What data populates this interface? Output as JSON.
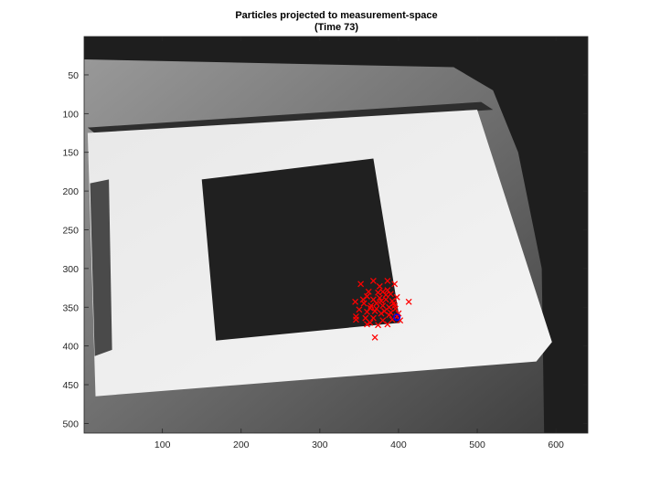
{
  "chart_data": {
    "type": "scatter",
    "title": "Particles projected to measurement-space",
    "subtitle": "(Time 73)",
    "xlabel": "",
    "ylabel": "",
    "xlim": [
      0.5,
      640.5
    ],
    "ylim": [
      0.5,
      512.5
    ],
    "y_reversed": true,
    "grid": false,
    "xticks": [
      100,
      200,
      300,
      400,
      500,
      600
    ],
    "yticks": [
      50,
      100,
      150,
      200,
      250,
      300,
      350,
      400,
      450,
      500
    ],
    "background": "grayscale camera image",
    "image_regions": {
      "board": [
        [
          5,
          125
        ],
        [
          500,
          95
        ],
        [
          595,
          395
        ],
        [
          575,
          420
        ],
        [
          15,
          465
        ]
      ],
      "board_edge": [
        [
          5,
          118
        ],
        [
          505,
          85
        ],
        [
          520,
          95
        ],
        [
          20,
          130
        ]
      ],
      "dark_square": [
        [
          150,
          185
        ],
        [
          368,
          158
        ],
        [
          402,
          370
        ],
        [
          168,
          393
        ]
      ],
      "side_strip": [
        [
          8,
          190
        ],
        [
          32,
          185
        ],
        [
          36,
          405
        ],
        [
          14,
          413
        ]
      ],
      "table_edge": [
        [
          0,
          0
        ],
        [
          640,
          0
        ],
        [
          640,
          512
        ],
        [
          585,
          512
        ],
        [
          582,
          300
        ],
        [
          552,
          150
        ],
        [
          520,
          70
        ],
        [
          470,
          40
        ],
        [
          0,
          30
        ]
      ]
    },
    "series": [
      {
        "marker": "x",
        "color": "#ff0000",
        "points": [
          [
            352,
            320
          ],
          [
            368,
            316
          ],
          [
            376,
            323
          ],
          [
            386,
            316
          ],
          [
            395,
            320
          ],
          [
            374,
            331
          ],
          [
            390,
            333
          ],
          [
            398,
            337
          ],
          [
            360,
            336
          ],
          [
            368,
            340
          ],
          [
            376,
            338
          ],
          [
            384,
            340
          ],
          [
            392,
            342
          ],
          [
            345,
            343
          ],
          [
            413,
            343
          ],
          [
            356,
            345
          ],
          [
            365,
            348
          ],
          [
            372,
            345
          ],
          [
            380,
            348
          ],
          [
            388,
            350
          ],
          [
            396,
            352
          ],
          [
            350,
            353
          ],
          [
            360,
            356
          ],
          [
            370,
            355
          ],
          [
            378,
            358
          ],
          [
            388,
            360
          ],
          [
            346,
            362
          ],
          [
            358,
            364
          ],
          [
            368,
            364
          ],
          [
            380,
            367
          ],
          [
            392,
            366
          ],
          [
            402,
            367
          ],
          [
            364,
            370
          ],
          [
            374,
            373
          ],
          [
            386,
            372
          ],
          [
            370,
            389
          ],
          [
            364,
            351
          ],
          [
            382,
            355
          ],
          [
            394,
            345
          ],
          [
            378,
            342
          ],
          [
            386,
            328
          ],
          [
            362,
            330
          ],
          [
            400,
            358
          ],
          [
            395,
            348
          ],
          [
            390,
            357
          ],
          [
            384,
            334
          ],
          [
            372,
            352
          ],
          [
            360,
            372
          ],
          [
            355,
            340
          ],
          [
            380,
            330
          ],
          [
            346,
            366
          ],
          [
            398,
            362
          ]
        ]
      },
      {
        "marker": "o",
        "color": "#0000ff",
        "points": [
          [
            398,
            363
          ]
        ]
      }
    ]
  }
}
